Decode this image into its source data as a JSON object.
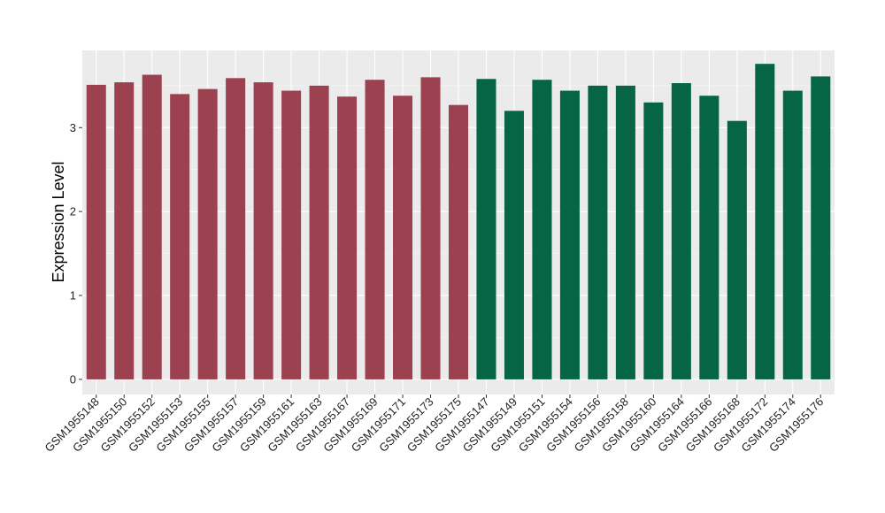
{
  "chart_data": {
    "type": "bar",
    "title": "",
    "xlabel": "",
    "ylabel": "Expression Level",
    "ylim": [
      -0.18,
      3.92
    ],
    "yticks": [
      0,
      1,
      2,
      3
    ],
    "grid": true,
    "panel_background": "#ebebeb",
    "categories": [
      "GSM1955148",
      "GSM1955150",
      "GSM1955152",
      "GSM1955153",
      "GSM1955155",
      "GSM1955157",
      "GSM1955159",
      "GSM1955161",
      "GSM1955163",
      "GSM1955167",
      "GSM1955169",
      "GSM1955171",
      "GSM1955173",
      "GSM1955175",
      "GSM1955147",
      "GSM1955149",
      "GSM1955151",
      "GSM1955154",
      "GSM1955156",
      "GSM1955158",
      "GSM1955160",
      "GSM1955164",
      "GSM1955166",
      "GSM1955168",
      "GSM1955172",
      "GSM1955174",
      "GSM1955176"
    ],
    "values": [
      3.51,
      3.54,
      3.63,
      3.4,
      3.46,
      3.59,
      3.54,
      3.44,
      3.5,
      3.37,
      3.57,
      3.38,
      3.6,
      3.27,
      3.58,
      3.2,
      3.57,
      3.44,
      3.5,
      3.5,
      3.3,
      3.53,
      3.38,
      3.08,
      3.76,
      3.44,
      3.61
    ],
    "bar_colors": [
      "#9b4150",
      "#9b4150",
      "#9b4150",
      "#9b4150",
      "#9b4150",
      "#9b4150",
      "#9b4150",
      "#9b4150",
      "#9b4150",
      "#9b4150",
      "#9b4150",
      "#9b4150",
      "#9b4150",
      "#9b4150",
      "#066545",
      "#066545",
      "#066545",
      "#066545",
      "#066545",
      "#066545",
      "#066545",
      "#066545",
      "#066545",
      "#066545",
      "#066545",
      "#066545",
      "#066545"
    ]
  }
}
